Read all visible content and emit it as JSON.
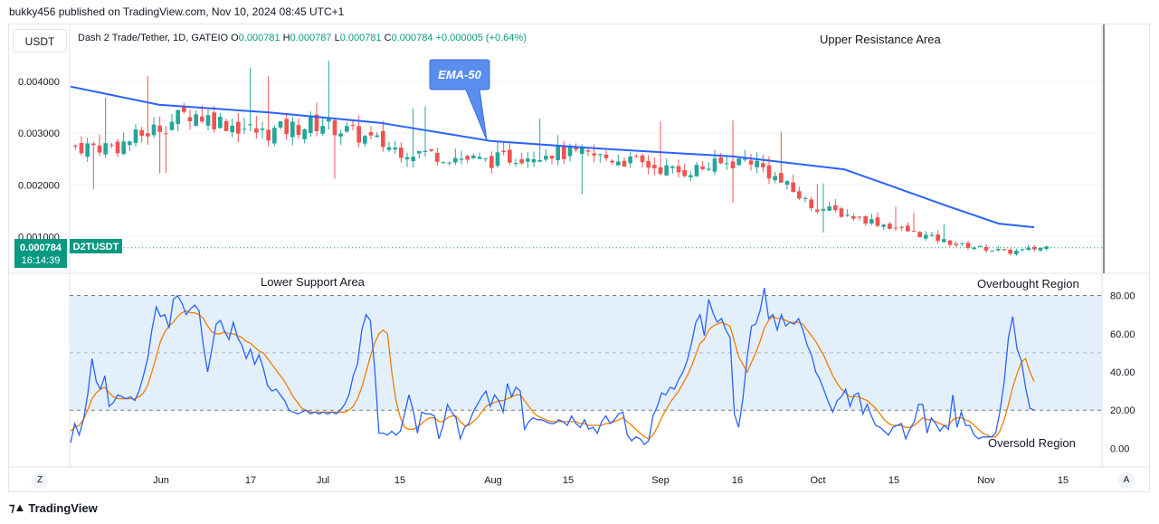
{
  "header": {
    "publisher_line": "bukky456 published on TradingView.com, Nov 10, 2024 08:45 UTC+1"
  },
  "toolbar": {
    "currency": "USDT",
    "scale_left": "Z",
    "scale_right": "A"
  },
  "legend": {
    "symbol": "Dash 2 Trade/Tether, 1D, GATEIO",
    "open_label": "O",
    "open": "0.000781",
    "high_label": "H",
    "high": "0.000787",
    "low_label": "L",
    "low": "0.000781",
    "close_label": "C",
    "close": "0.000784",
    "change": "+0.000005 (+0.64%)"
  },
  "price_tag": {
    "price": "0.000784",
    "countdown": "16:14:39",
    "symbol": "D2TUSDT"
  },
  "annotations": {
    "upper_resistance": "Upper Resistance Area",
    "ema_callout": "EMA-50",
    "lower_support": "Lower Support Area",
    "overbought": "Overbought Region",
    "oversold": "Oversold Region"
  },
  "footer": {
    "brand": "TradingView"
  },
  "colors": {
    "up": "#26a69a",
    "down": "#ef5350",
    "ema": "#2962ff",
    "rsi_fast": "#2962ff",
    "rsi_slow": "#f57c00",
    "rsi_band": "#e3f0fc",
    "callout": "#5b8def"
  },
  "chart_data": [
    {
      "type": "candlestick",
      "title": "Dash 2 Trade/Tether, 1D, GATEIO",
      "x_ticks": [
        "Jun",
        "17",
        "Jul",
        "15",
        "Aug",
        "15",
        "Sep",
        "16",
        "Oct",
        "15",
        "Nov",
        "15"
      ],
      "y_ticks": [
        "0.004000",
        "0.003000",
        "0.002000",
        "0.001000"
      ],
      "ylim": [
        0.0005,
        0.0047
      ],
      "grid": true,
      "overlay": {
        "name": "EMA-50"
      },
      "price_segments": [
        {
          "o": 0.00275,
          "c": 0.00275,
          "n": 8
        },
        {
          "o": 0.00275,
          "c": 0.0034,
          "n": 12
        },
        {
          "o": 0.0034,
          "c": 0.003,
          "n": 12
        },
        {
          "o": 0.003,
          "c": 0.0032,
          "n": 10
        },
        {
          "o": 0.0032,
          "c": 0.0027,
          "n": 12
        },
        {
          "o": 0.0027,
          "c": 0.00245,
          "n": 15
        },
        {
          "o": 0.00245,
          "c": 0.00265,
          "n": 10
        },
        {
          "o": 0.00265,
          "c": 0.0025,
          "n": 12
        },
        {
          "o": 0.0025,
          "c": 0.00225,
          "n": 10
        },
        {
          "o": 0.00225,
          "c": 0.0025,
          "n": 12
        },
        {
          "o": 0.0025,
          "c": 0.0016,
          "n": 10
        },
        {
          "o": 0.0016,
          "c": 0.0013,
          "n": 10
        },
        {
          "o": 0.0013,
          "c": 0.00085,
          "n": 14
        },
        {
          "o": 0.00085,
          "c": 0.0007,
          "n": 9
        },
        {
          "o": 0.0007,
          "c": 0.0008,
          "n": 6
        }
      ],
      "ema_points": [
        {
          "x": 0,
          "y": 0.0039
        },
        {
          "x": 20,
          "y": 0.00355
        },
        {
          "x": 45,
          "y": 0.0034
        },
        {
          "x": 70,
          "y": 0.0032
        },
        {
          "x": 95,
          "y": 0.00285
        },
        {
          "x": 120,
          "y": 0.0027
        },
        {
          "x": 150,
          "y": 0.00255
        },
        {
          "x": 175,
          "y": 0.0023
        },
        {
          "x": 185,
          "y": 0.002
        },
        {
          "x": 198,
          "y": 0.0016
        },
        {
          "x": 210,
          "y": 0.00125
        },
        {
          "x": 218,
          "y": 0.00118
        }
      ]
    },
    {
      "type": "line",
      "title": "",
      "x_ticks": [
        "Jun",
        "17",
        "Jul",
        "15",
        "Aug",
        "15",
        "Sep",
        "16",
        "Oct",
        "15",
        "Nov",
        "15"
      ],
      "y_ticks": [
        "80.00",
        "60.00",
        "40.00",
        "20.00",
        "0.00"
      ],
      "ylim": [
        -5,
        85
      ],
      "bands": [
        20,
        50,
        80
      ],
      "series": [
        {
          "name": "",
          "values": [
            3,
            13,
            7,
            15,
            28,
            47,
            35,
            31,
            38,
            22,
            24,
            28,
            27,
            26,
            27,
            25,
            30,
            38,
            47,
            62,
            74,
            69,
            70,
            63,
            78,
            80,
            76,
            70,
            73,
            75,
            72,
            54,
            40,
            52,
            65,
            67,
            61,
            57,
            66,
            58,
            54,
            47,
            52,
            44,
            49,
            42,
            33,
            30,
            31,
            28,
            25,
            20,
            19,
            18,
            19,
            20,
            18,
            19,
            18,
            19,
            18,
            19,
            18,
            20,
            23,
            28,
            38,
            44,
            62,
            70,
            67,
            42,
            8,
            8,
            7,
            9,
            7,
            9,
            18,
            28,
            20,
            8,
            19,
            18,
            18,
            17,
            5,
            12,
            23,
            19,
            16,
            5,
            11,
            13,
            19,
            23,
            27,
            30,
            22,
            28,
            25,
            19,
            34,
            27,
            32,
            30,
            10,
            14,
            16,
            15,
            15,
            14,
            13,
            13,
            15,
            14,
            12,
            17,
            13,
            11,
            15,
            10,
            11,
            8,
            14,
            17,
            13,
            15,
            18,
            19,
            7,
            4,
            6,
            5,
            2,
            4,
            17,
            22,
            29,
            28,
            32,
            31,
            36,
            40,
            46,
            55,
            66,
            70,
            59,
            78,
            71,
            66,
            68,
            62,
            58,
            18,
            11,
            26,
            48,
            64,
            65,
            72,
            84,
            68,
            70,
            62,
            70,
            64,
            66,
            65,
            68,
            62,
            54,
            49,
            40,
            36,
            30,
            24,
            19,
            25,
            27,
            31,
            22,
            28,
            29,
            18,
            23,
            17,
            12,
            11,
            9,
            7,
            11,
            12,
            13,
            5,
            10,
            14,
            23,
            23,
            8,
            16,
            13,
            9,
            12,
            10,
            28,
            11,
            19,
            12,
            12,
            7,
            5,
            6,
            6,
            6,
            8,
            19,
            35,
            58,
            69,
            52,
            46,
            32,
            21,
            20
          ]
        },
        {
          "name": "",
          "values": [
            9,
            11,
            12,
            15,
            20,
            26,
            29,
            31,
            32,
            29,
            27,
            26,
            26,
            26,
            26,
            26,
            27,
            29,
            33,
            40,
            48,
            56,
            61,
            64,
            66,
            69,
            71,
            72,
            71,
            71,
            70,
            68,
            64,
            61,
            60,
            60,
            61,
            60,
            60,
            59,
            58,
            56,
            55,
            53,
            51,
            50,
            47,
            44,
            41,
            38,
            35,
            31,
            27,
            24,
            21,
            20,
            19,
            19,
            19,
            19,
            19,
            19,
            19,
            19,
            19,
            20,
            22,
            26,
            32,
            40,
            48,
            55,
            60,
            62,
            60,
            40,
            25,
            16,
            11,
            10,
            10,
            11,
            13,
            15,
            16,
            16,
            14,
            14,
            16,
            17,
            17,
            14,
            12,
            12,
            14,
            16,
            19,
            22,
            23,
            24,
            25,
            25,
            26,
            27,
            28,
            28,
            25,
            22,
            19,
            17,
            16,
            15,
            14,
            14,
            14,
            14,
            14,
            14,
            14,
            13,
            13,
            12,
            12,
            12,
            12,
            13,
            13,
            14,
            15,
            16,
            14,
            12,
            10,
            8,
            6,
            5,
            7,
            11,
            16,
            20,
            24,
            27,
            30,
            34,
            38,
            43,
            49,
            55,
            57,
            62,
            64,
            65,
            66,
            65,
            64,
            56,
            48,
            44,
            40,
            45,
            50,
            56,
            63,
            67,
            69,
            68,
            68,
            67,
            66,
            66,
            66,
            65,
            62,
            59,
            56,
            52,
            48,
            43,
            38,
            34,
            31,
            29,
            27,
            27,
            27,
            26,
            25,
            23,
            21,
            18,
            15,
            13,
            12,
            12,
            12,
            11,
            11,
            12,
            14,
            16,
            15,
            15,
            14,
            13,
            12,
            12,
            15,
            16,
            16,
            15,
            14,
            12,
            10,
            8,
            7,
            6,
            6,
            9,
            15,
            23,
            32,
            39,
            45,
            47,
            40,
            35
          ]
        }
      ]
    }
  ]
}
